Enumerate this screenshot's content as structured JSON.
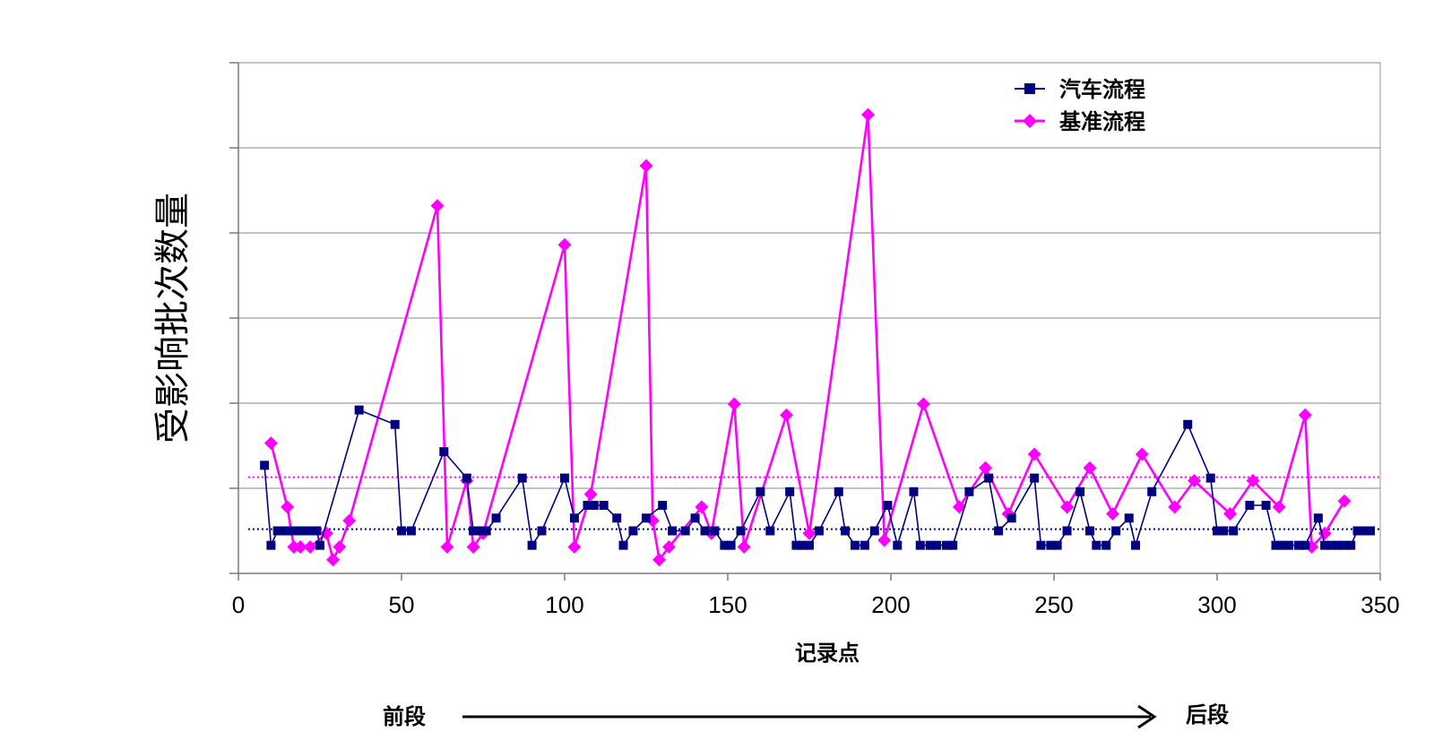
{
  "chart_data": {
    "type": "line",
    "title": "",
    "xlabel": "记录点",
    "ylabel": "受影响批次数量",
    "xlim": [
      0,
      350
    ],
    "xticks": [
      "0",
      "50",
      "100",
      "150",
      "200",
      "250",
      "300",
      "350"
    ],
    "ylim": [
      0,
      6
    ],
    "grid": true,
    "legend_position": "top-right",
    "direction": {
      "start_label": "前段",
      "end_label": "后段"
    },
    "series": [
      {
        "name": "汽车流程",
        "color": "#000080",
        "marker": "square",
        "points": [
          [
            8,
            1.27
          ],
          [
            10,
            0.33
          ],
          [
            12,
            0.5
          ],
          [
            14,
            0.5
          ],
          [
            16,
            0.5
          ],
          [
            18,
            0.5
          ],
          [
            20,
            0.5
          ],
          [
            22,
            0.5
          ],
          [
            24,
            0.5
          ],
          [
            25,
            0.33
          ],
          [
            37,
            1.92
          ],
          [
            48,
            1.75
          ],
          [
            50,
            0.5
          ],
          [
            53,
            0.5
          ],
          [
            63,
            1.43
          ],
          [
            70,
            1.12
          ],
          [
            72,
            0.5
          ],
          [
            74,
            0.5
          ],
          [
            76,
            0.5
          ],
          [
            79,
            0.65
          ],
          [
            87,
            1.12
          ],
          [
            90,
            0.33
          ],
          [
            93,
            0.5
          ],
          [
            100,
            1.12
          ],
          [
            103,
            0.65
          ],
          [
            107,
            0.8
          ],
          [
            109,
            0.8
          ],
          [
            112,
            0.8
          ],
          [
            116,
            0.65
          ],
          [
            118,
            0.33
          ],
          [
            121,
            0.5
          ],
          [
            125,
            0.65
          ],
          [
            130,
            0.8
          ],
          [
            133,
            0.5
          ],
          [
            137,
            0.5
          ],
          [
            140,
            0.65
          ],
          [
            143,
            0.5
          ],
          [
            146,
            0.5
          ],
          [
            149,
            0.33
          ],
          [
            151,
            0.33
          ],
          [
            154,
            0.5
          ],
          [
            160,
            0.96
          ],
          [
            163,
            0.5
          ],
          [
            169,
            0.96
          ],
          [
            171,
            0.33
          ],
          [
            173,
            0.33
          ],
          [
            175,
            0.33
          ],
          [
            178,
            0.5
          ],
          [
            184,
            0.96
          ],
          [
            186,
            0.5
          ],
          [
            189,
            0.33
          ],
          [
            192,
            0.33
          ],
          [
            195,
            0.5
          ],
          [
            199,
            0.8
          ],
          [
            202,
            0.33
          ],
          [
            207,
            0.96
          ],
          [
            209,
            0.33
          ],
          [
            212,
            0.33
          ],
          [
            214,
            0.33
          ],
          [
            217,
            0.33
          ],
          [
            219,
            0.33
          ],
          [
            224,
            0.96
          ],
          [
            230,
            1.12
          ],
          [
            233,
            0.5
          ],
          [
            237,
            0.65
          ],
          [
            244,
            1.12
          ],
          [
            246,
            0.33
          ],
          [
            249,
            0.33
          ],
          [
            251,
            0.33
          ],
          [
            254,
            0.5
          ],
          [
            258,
            0.96
          ],
          [
            261,
            0.5
          ],
          [
            263,
            0.33
          ],
          [
            266,
            0.33
          ],
          [
            269,
            0.5
          ],
          [
            273,
            0.65
          ],
          [
            275,
            0.33
          ],
          [
            280,
            0.96
          ],
          [
            291,
            1.75
          ],
          [
            298,
            1.12
          ],
          [
            300,
            0.5
          ],
          [
            302,
            0.5
          ],
          [
            305,
            0.5
          ],
          [
            310,
            0.8
          ],
          [
            315,
            0.8
          ],
          [
            318,
            0.33
          ],
          [
            320,
            0.33
          ],
          [
            322,
            0.33
          ],
          [
            325,
            0.33
          ],
          [
            327,
            0.33
          ],
          [
            331,
            0.65
          ],
          [
            333,
            0.33
          ],
          [
            335,
            0.33
          ],
          [
            337,
            0.33
          ],
          [
            339,
            0.33
          ],
          [
            341,
            0.33
          ],
          [
            343,
            0.5
          ],
          [
            345,
            0.5
          ],
          [
            347,
            0.5
          ]
        ]
      },
      {
        "name": "基准流程",
        "color": "#ff00ff",
        "marker": "diamond",
        "points": [
          [
            10,
            1.53
          ],
          [
            15,
            0.78
          ],
          [
            17,
            0.31
          ],
          [
            19,
            0.31
          ],
          [
            22,
            0.31
          ],
          [
            27,
            0.47
          ],
          [
            29,
            0.16
          ],
          [
            31,
            0.31
          ],
          [
            34,
            0.62
          ],
          [
            61,
            4.32
          ],
          [
            64,
            0.31
          ],
          [
            70,
            1.09
          ],
          [
            72,
            0.31
          ],
          [
            75,
            0.47
          ],
          [
            100,
            3.86
          ],
          [
            103,
            0.31
          ],
          [
            108,
            0.93
          ],
          [
            125,
            4.79
          ],
          [
            127,
            0.62
          ],
          [
            129,
            0.16
          ],
          [
            132,
            0.31
          ],
          [
            142,
            0.78
          ],
          [
            145,
            0.47
          ],
          [
            152,
            1.99
          ],
          [
            155,
            0.31
          ],
          [
            168,
            1.86
          ],
          [
            175,
            0.47
          ],
          [
            193,
            5.39
          ],
          [
            198,
            0.39
          ],
          [
            210,
            1.99
          ],
          [
            221,
            0.78
          ],
          [
            229,
            1.24
          ],
          [
            236,
            0.7
          ],
          [
            244,
            1.4
          ],
          [
            254,
            0.78
          ],
          [
            261,
            1.24
          ],
          [
            268,
            0.7
          ],
          [
            277,
            1.4
          ],
          [
            287,
            0.78
          ],
          [
            293,
            1.09
          ],
          [
            304,
            0.7
          ],
          [
            311,
            1.09
          ],
          [
            319,
            0.78
          ],
          [
            327,
            1.86
          ],
          [
            329,
            0.31
          ],
          [
            333,
            0.47
          ],
          [
            339,
            0.85
          ]
        ]
      }
    ],
    "reference_lines": [
      {
        "series": "汽车流程",
        "y": 0.52,
        "style": "dotted"
      },
      {
        "series": "基准流程",
        "y": 1.13,
        "style": "dotted"
      }
    ]
  }
}
